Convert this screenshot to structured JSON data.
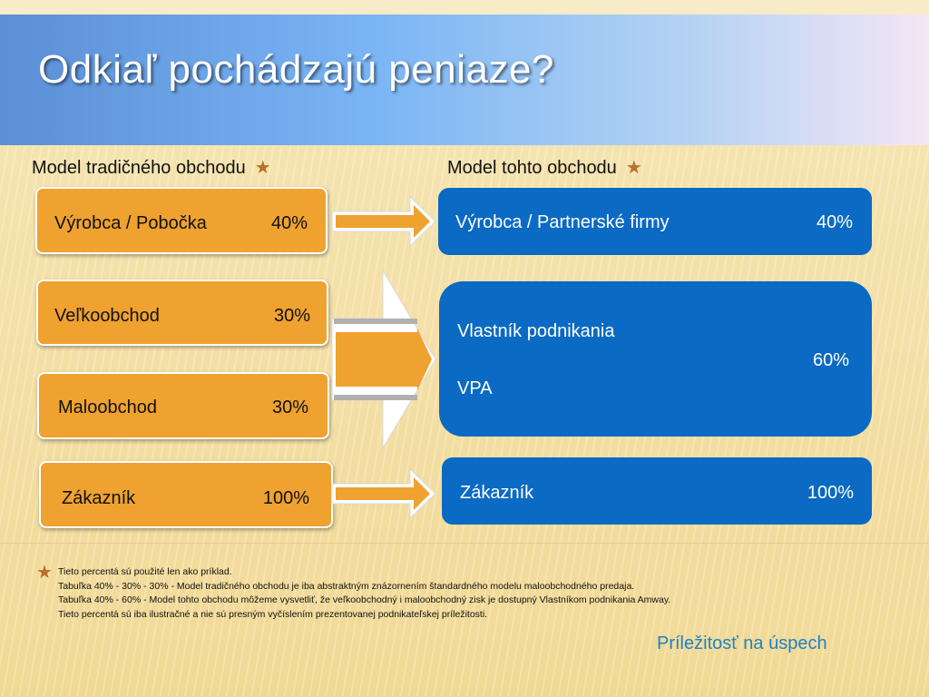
{
  "slide": {
    "title": "Odkiaľ pochádzajú peniaze?"
  },
  "columns": {
    "left_title": "Model tradičného obchodu",
    "right_title": "Model tohto obchodu",
    "star_glyph": "★"
  },
  "left_boxes": [
    {
      "label": "Výrobca / Pobočka",
      "value": "40%"
    },
    {
      "label": "Veľkoobchod",
      "value": "30%"
    },
    {
      "label": "Maloobchod",
      "value": "30%"
    },
    {
      "label": "Zákazník",
      "value": "100%"
    }
  ],
  "right_boxes": {
    "manufacturer": {
      "label": "Výrobca / Partnerské firmy",
      "value": "40%"
    },
    "owner": {
      "line1": "Vlastník podnikania",
      "value": "60%",
      "line2": "VPA"
    },
    "customer": {
      "label": "Zákazník",
      "value": "100%"
    }
  },
  "footnote": {
    "star_glyph": "★",
    "lines": [
      "Tieto percentá sú použité len ako príklad.",
      "Tabuľka 40% - 30% - 30% - Model tradičného obchodu je iba abstraktným znázornením štandardného modelu maloobchodného predaja.",
      "Tabuľka 40% - 60% - Model tohto obchodu môžeme vysvetliť, že veľkoobchodný i maloobchodný zisk je dostupný Vlastníkom podnikania Amway.",
      "Tieto percentá sú iba ilustračné a nie sú presným vyčíslením prezentovanej podnikateľskej príležitosti."
    ]
  },
  "footer": {
    "text": "Príležitosť na úspech"
  },
  "colors": {
    "orange_box": "#efa22f",
    "blue_box": "#0b6ac3",
    "star": "#b8702a",
    "footer_text": "#1f82c5"
  },
  "icons": {
    "title_star": "star-icon",
    "arrow": "right-arrow-icon"
  }
}
